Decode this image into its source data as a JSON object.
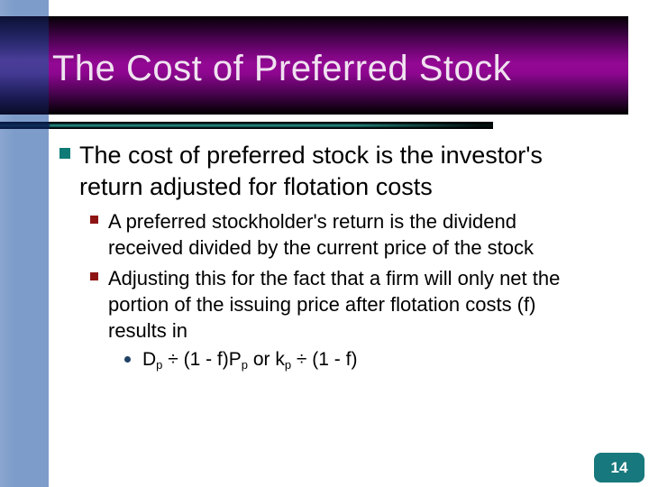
{
  "title": "The Cost of Preferred Stock",
  "page_number": "14",
  "content": {
    "items": [
      {
        "level": 1,
        "lines": [
          "The cost of preferred stock is the investor's",
          "return adjusted for flotation costs"
        ]
      },
      {
        "level": 2,
        "lines": [
          "A preferred stockholder's return is the dividend",
          "received divided by the current price of the stock"
        ]
      },
      {
        "level": 2,
        "lines": [
          "Adjusting this for the fact that a firm will only net the",
          "portion of the issuing price after flotation costs (f)",
          "results in"
        ]
      }
    ],
    "formula": {
      "base1": "D",
      "sub1": "p",
      "base2": " ÷ (1 - f)P",
      "sub2": "p",
      "base3": " or k",
      "sub3": "p",
      "base4": " ÷ (1 - f)"
    }
  },
  "colors": {
    "sidebar_blue": "#7e9cc9",
    "banner_magenta": "#8e0690",
    "banner_left_violet": "#4a3d99",
    "separator_teal": "#2e958b",
    "bullet_level1_teal": "#0e7b76",
    "bullet_level2_darkred": "#8e1414",
    "bullet_level3_navy": "#1f4166",
    "badge_teal": "#17787d",
    "title_text": "#f0e2f0",
    "body_text": "#000000"
  }
}
